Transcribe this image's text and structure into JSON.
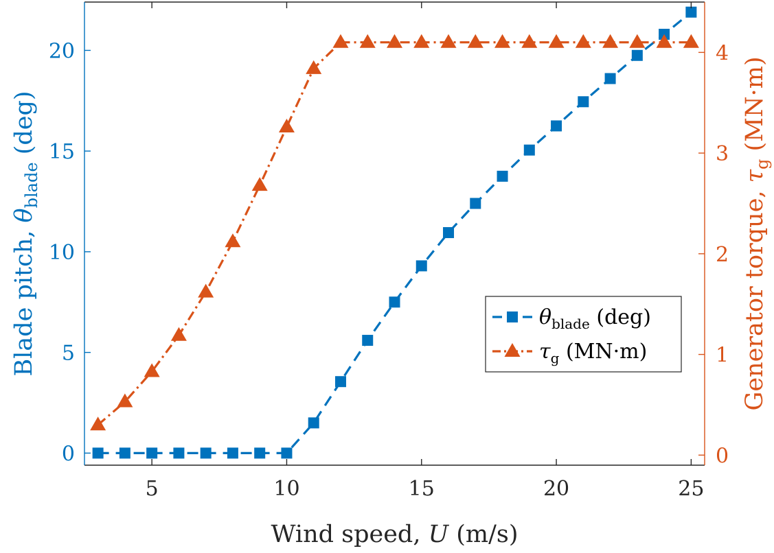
{
  "chart_data": {
    "type": "line",
    "title": "",
    "xlabel": {
      "text": "Wind speed, ",
      "var": "U",
      "unit": " (m/s)"
    },
    "ylabel_left": {
      "text": "Blade pitch, ",
      "var": "θ",
      "sub": "blade",
      "unit": " (deg)"
    },
    "ylabel_right": {
      "text": "Generator torque, ",
      "var": "τ",
      "sub": "g",
      "unit": " (MN·m)"
    },
    "xlim": [
      2.5,
      25.5
    ],
    "ylim_left": [
      -0.6,
      22.4
    ],
    "ylim_right": [
      -0.1,
      4.5
    ],
    "xticks": [
      5,
      10,
      15,
      20,
      25
    ],
    "yticks_left": [
      0,
      5,
      10,
      15,
      20
    ],
    "yticks_right": [
      0,
      1,
      2,
      3,
      4
    ],
    "x": [
      3,
      4,
      5,
      6,
      7,
      8,
      9,
      10,
      11,
      12,
      13,
      14,
      15,
      16,
      17,
      18,
      19,
      20,
      21,
      22,
      23,
      24,
      25
    ],
    "series": [
      {
        "name": "θ_blade (deg)",
        "axis": "left",
        "color": "#0072BD",
        "marker": "square",
        "linestyle": "dashed",
        "values": [
          0,
          0,
          0,
          0,
          0,
          0,
          0,
          0,
          1.5,
          3.55,
          5.6,
          7.5,
          9.3,
          10.95,
          12.4,
          13.75,
          15.05,
          16.25,
          17.45,
          18.6,
          19.75,
          20.8,
          21.9
        ]
      },
      {
        "name": "τ_g (MN·m)",
        "axis": "right",
        "color": "#D95319",
        "marker": "triangle",
        "linestyle": "dashdot",
        "values": [
          0.3,
          0.53,
          0.83,
          1.19,
          1.62,
          2.12,
          2.68,
          3.26,
          3.84,
          4.1,
          4.1,
          4.1,
          4.1,
          4.1,
          4.1,
          4.1,
          4.1,
          4.1,
          4.1,
          4.1,
          4.1,
          4.1,
          4.1
        ]
      }
    ],
    "legend": {
      "position": "lower-right",
      "entries": [
        {
          "var": "θ",
          "sub": "blade",
          "unit": " (deg)"
        },
        {
          "var": "τ",
          "sub": "g",
          "unit": " (MN·m)"
        }
      ]
    },
    "grid": false
  }
}
